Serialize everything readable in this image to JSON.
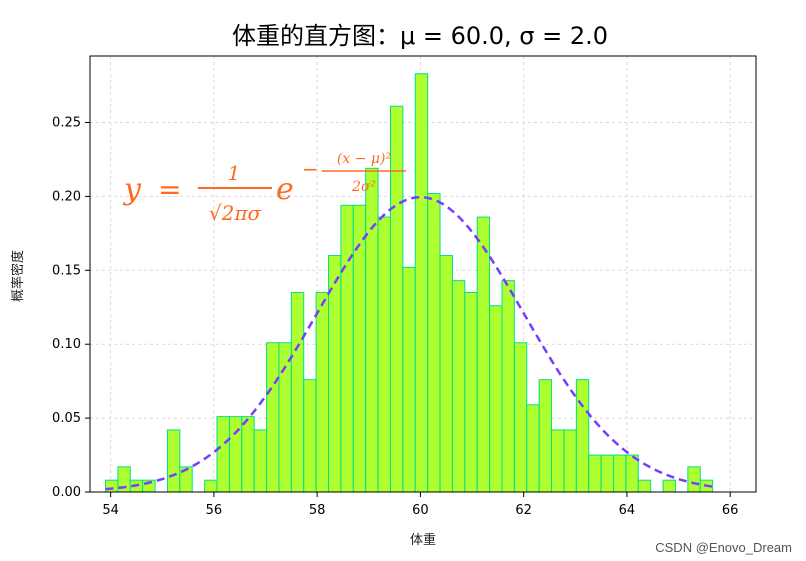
{
  "chart_data": {
    "type": "bar",
    "title": "体重的直方图：μ = 60.0,  σ = 2.0",
    "xlabel": "体重",
    "ylabel": "概率密度",
    "xlim": [
      53.6,
      66.5
    ],
    "ylim": [
      0,
      0.295
    ],
    "xticks": [
      "54",
      "56",
      "58",
      "60",
      "62",
      "64",
      "66"
    ],
    "yticks": [
      "0.00",
      "0.05",
      "0.10",
      "0.15",
      "0.20",
      "0.25"
    ],
    "grid": true,
    "bin_start": 53.9,
    "bin_width": 0.24,
    "values": [
      0.008,
      0.017,
      0.008,
      0.008,
      0.0,
      0.042,
      0.017,
      0.0,
      0.008,
      0.051,
      0.051,
      0.051,
      0.042,
      0.101,
      0.101,
      0.135,
      0.076,
      0.135,
      0.16,
      0.194,
      0.194,
      0.219,
      0.186,
      0.261,
      0.152,
      0.283,
      0.202,
      0.16,
      0.143,
      0.135,
      0.186,
      0.126,
      0.143,
      0.101,
      0.059,
      0.076,
      0.042,
      0.042,
      0.076,
      0.025,
      0.025,
      0.025,
      0.025,
      0.008,
      0.0,
      0.008,
      0.0,
      0.017,
      0.008
    ],
    "bar_color": "#adff2f",
    "edge_color": "#00e08a",
    "curve": {
      "mu": 60.0,
      "sigma": 2.0,
      "color": "#7a3cff",
      "style": "dashed"
    },
    "annotation": {
      "lhs": "y",
      "equals": "=",
      "numerator": "1",
      "denominator": "√2πσ",
      "base": "e",
      "exp_sign": "−",
      "exp_numerator": "(x − μ)²",
      "exp_denominator": "2σ²",
      "color": "#ff6a20"
    }
  },
  "watermark": "CSDN @Enovo_Dream"
}
